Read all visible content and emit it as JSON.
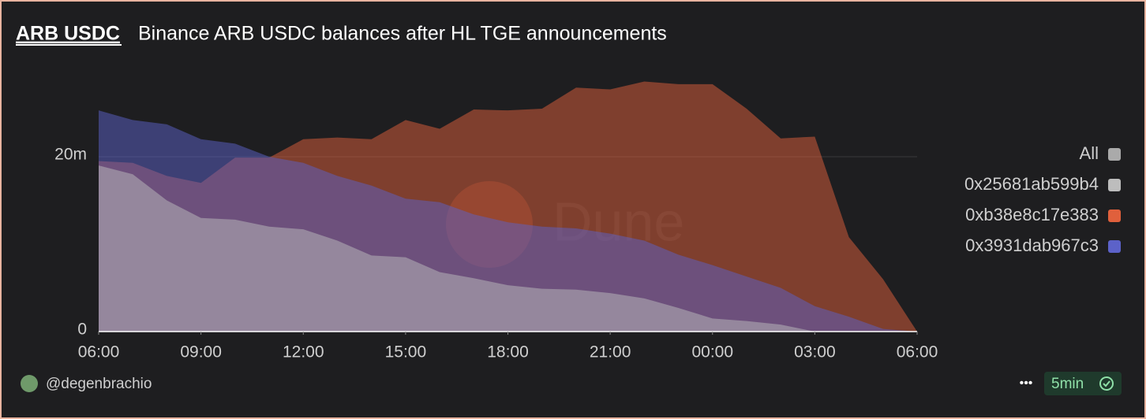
{
  "header": {
    "title": "ARB USDC",
    "subtitle": "Binance ARB USDC balances after HL TGE announcements"
  },
  "chart_data": {
    "type": "area",
    "categories": [
      "06:00",
      "07:00",
      "08:00",
      "09:00",
      "10:00",
      "11:00",
      "12:00",
      "13:00",
      "14:00",
      "15:00",
      "16:00",
      "17:00",
      "18:00",
      "19:00",
      "20:00",
      "21:00",
      "22:00",
      "23:00",
      "00:00",
      "01:00",
      "02:00",
      "03:00",
      "04:00",
      "05:00",
      "06:00"
    ],
    "series": [
      {
        "name": "0xb38e8c17e383",
        "color": "#e0603c",
        "values": [
          19.5,
          19.3,
          17.8,
          17.0,
          19.9,
          19.9,
          22.0,
          22.2,
          22.0,
          24.2,
          23.2,
          25.4,
          25.3,
          25.5,
          27.9,
          27.7,
          28.6,
          28.3,
          28.3,
          25.5,
          22.1,
          22.3,
          10.8,
          6.0,
          0
        ]
      },
      {
        "name": "0x3931dab967c3",
        "color": "#5c62c9",
        "values": [
          25.3,
          24.2,
          23.7,
          22.0,
          21.5,
          20.0,
          19.3,
          17.8,
          16.7,
          15.2,
          14.8,
          13.4,
          12.5,
          12.0,
          11.8,
          11.2,
          10.4,
          8.8,
          7.6,
          6.3,
          5.0,
          2.9,
          1.7,
          0.3,
          0
        ]
      },
      {
        "name": "0x25681ab599b4",
        "color": "#bdbdbd",
        "values": [
          19.0,
          18.0,
          15.0,
          13.0,
          12.8,
          12.0,
          11.7,
          10.4,
          8.7,
          8.5,
          6.8,
          6.1,
          5.3,
          4.9,
          4.8,
          4.4,
          3.8,
          2.7,
          1.5,
          1.2,
          0.8,
          0,
          0,
          0,
          0
        ]
      }
    ],
    "legend_all": {
      "label": "All",
      "color": "#aaaaaa"
    },
    "ylim": [
      0,
      30
    ],
    "yticks": [
      0,
      {
        "value": 20,
        "label": "20m"
      }
    ],
    "xticks": [
      {
        "value": 0,
        "label": "06:00"
      },
      {
        "value": 3,
        "label": "09:00"
      },
      {
        "value": 6,
        "label": "12:00"
      },
      {
        "value": 9,
        "label": "15:00"
      },
      {
        "value": 12,
        "label": "18:00"
      },
      {
        "value": 15,
        "label": "21:00"
      },
      {
        "value": 18,
        "label": "00:00"
      },
      {
        "value": 21,
        "label": "03:00"
      },
      {
        "value": 24,
        "label": "06:00"
      }
    ],
    "grid": true,
    "legend": "right",
    "watermark": "Dune"
  },
  "footer": {
    "author": "@degenbrachio",
    "menu": "•••",
    "refresh": "5min"
  }
}
